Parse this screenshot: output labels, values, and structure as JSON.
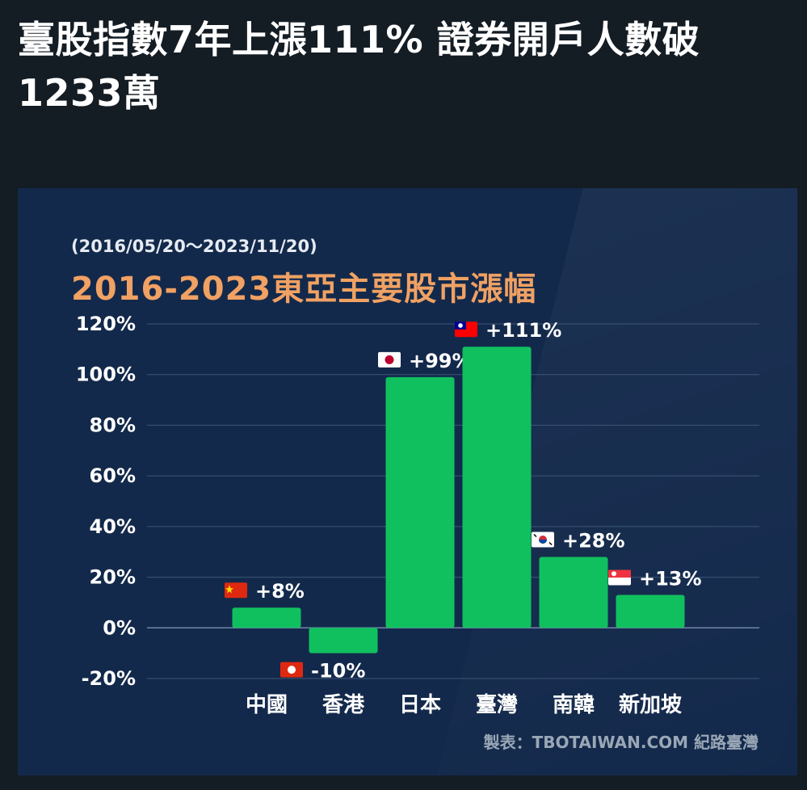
{
  "headline": "臺股指數7年上漲111% 證券開戶人數破1233萬",
  "card": {
    "date_range": "(2016/05/20～2023/11/20)",
    "credit": "製表：TBOTAIWAN.COM 紀路臺灣"
  },
  "colors": {
    "bar": "#10c05f",
    "grid": "#3d5678",
    "axis_text": "#ffffff",
    "title_orange": "#f0a163"
  },
  "chart_data": {
    "type": "bar",
    "title": "2016-2023東亞主要股市漲幅",
    "categories": [
      "中國",
      "香港",
      "日本",
      "臺灣",
      "南韓",
      "新加坡"
    ],
    "values": [
      8,
      -10,
      99,
      111,
      28,
      13
    ],
    "data_labels": [
      "+8%",
      "-10%",
      "+99%",
      "+111%",
      "+28%",
      "+13%"
    ],
    "flags": [
      "china-flag",
      "hong-kong-flag",
      "japan-flag",
      "taiwan-flag",
      "south-korea-flag",
      "singapore-flag"
    ],
    "ylim": [
      -20,
      120
    ],
    "yticks": [
      -20,
      0,
      20,
      40,
      60,
      80,
      100,
      120
    ],
    "ytick_labels": [
      "-20%",
      "0%",
      "20%",
      "40%",
      "60%",
      "80%",
      "100%",
      "120%"
    ],
    "grid": true,
    "xlabel": "",
    "ylabel": ""
  }
}
